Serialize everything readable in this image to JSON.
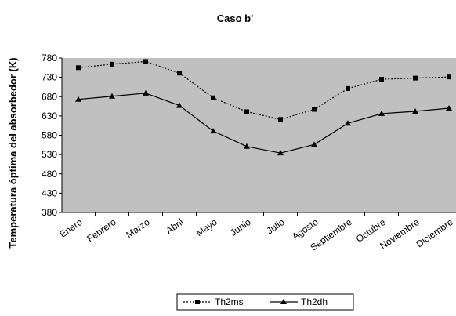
{
  "chart_data": {
    "type": "line",
    "title": "Caso b'",
    "xlabel": "",
    "ylabel": "Temperatura óptima del absorbedor (K)",
    "ylim": [
      380,
      780
    ],
    "yticks": [
      380,
      430,
      480,
      530,
      580,
      630,
      680,
      730,
      780
    ],
    "categories": [
      "Enero",
      "Febrero",
      "Marzo",
      "Abril",
      "Mayo",
      "Junio",
      "Julio",
      "Agosto",
      "Septiembre",
      "Octubre",
      "Noviembre",
      "Diciembre"
    ],
    "series": [
      {
        "name": "Th2ms",
        "marker": "square",
        "line": "dotted",
        "values": [
          755,
          764,
          771,
          741,
          677,
          641,
          621,
          647,
          701,
          725,
          728,
          731
        ]
      },
      {
        "name": "Th2dh",
        "marker": "triangle",
        "line": "solid",
        "values": [
          673,
          681,
          689,
          657,
          591,
          551,
          534,
          556,
          611,
          636,
          642,
          650
        ]
      }
    ],
    "grid": false,
    "legend": "bottom",
    "colors": {
      "plot_background": "#c0c0c0",
      "series_line": "#000000"
    }
  }
}
